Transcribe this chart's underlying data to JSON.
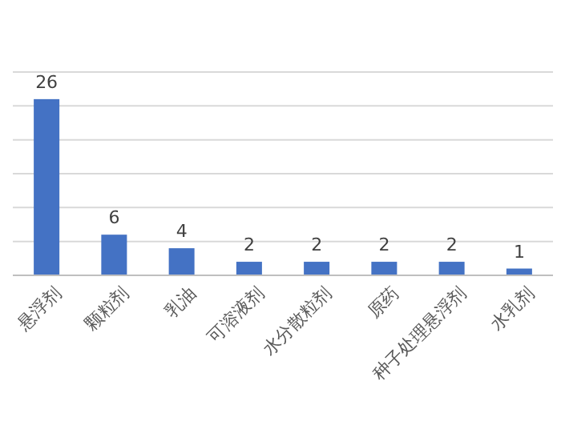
{
  "chart_data": {
    "type": "bar",
    "categories": [
      "悬浮剂",
      "颗粒剂",
      "乳油",
      "可溶液剂",
      "水分散粒剂",
      "原药",
      "种子处理悬浮剂",
      "水乳剂"
    ],
    "values": [
      26,
      6,
      4,
      2,
      2,
      2,
      2,
      1
    ],
    "color": "#4472c4",
    "data_labels": true,
    "ylim": [
      0,
      30
    ],
    "yticks": [
      {
        "value": 0,
        "label": null
      },
      {
        "value": 5,
        "label": null
      },
      {
        "value": 10,
        "label": null
      },
      {
        "value": 15,
        "label": null
      },
      {
        "value": 20,
        "label": null
      },
      {
        "value": 25,
        "label": null
      },
      {
        "value": 30,
        "label": null
      }
    ],
    "grid": "y",
    "tick_labels": "x"
  }
}
